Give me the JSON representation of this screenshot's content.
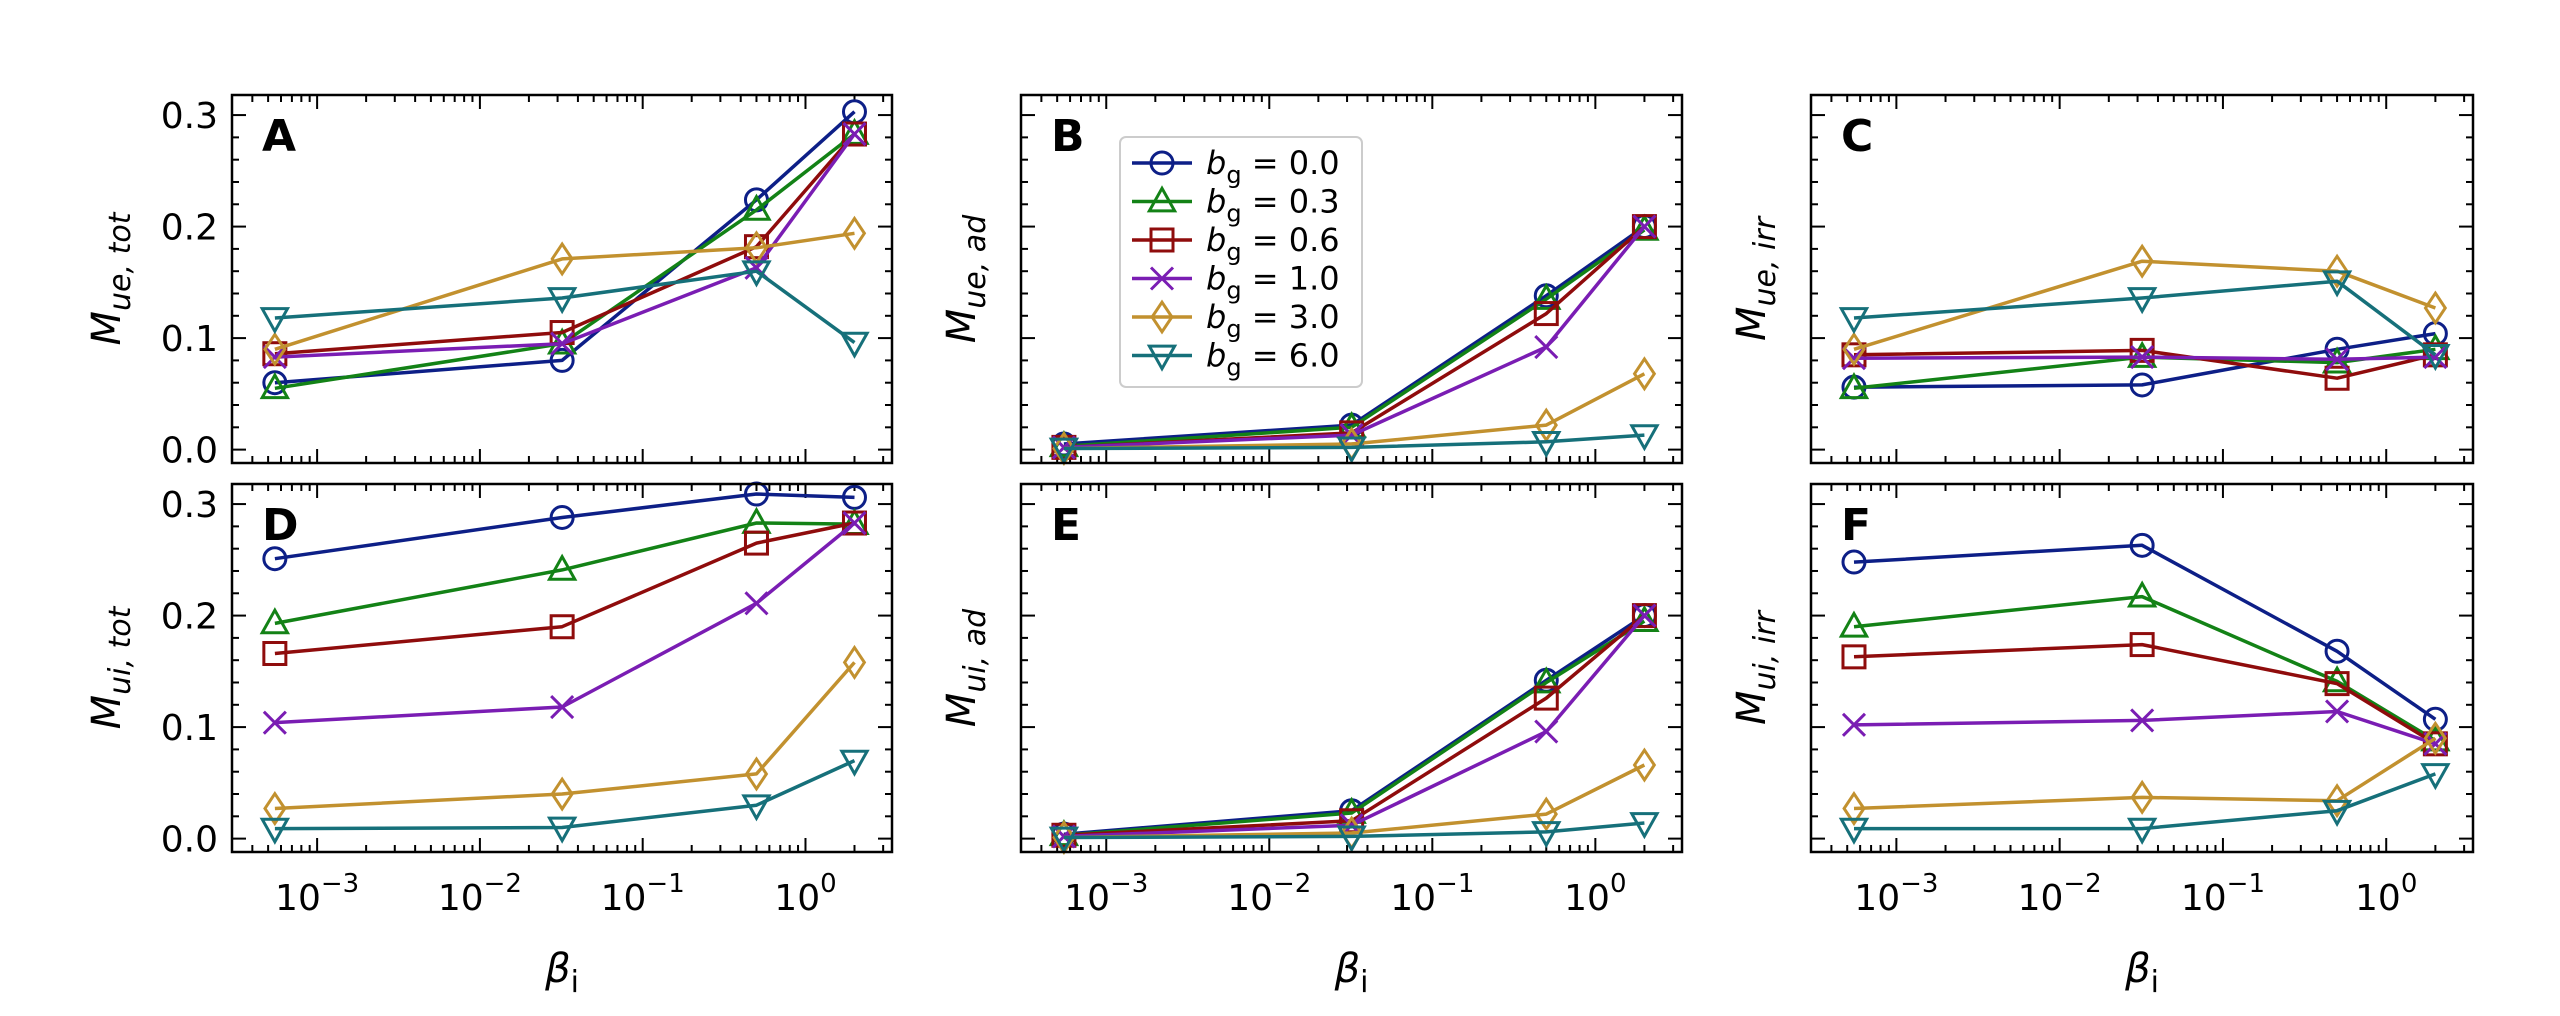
{
  "chart_data": {
    "type": "line",
    "x_scale": "log",
    "x": [
      0.00055,
      0.032,
      0.5,
      2.0
    ],
    "xticks": [
      0.001,
      0.01,
      0.1,
      1
    ],
    "xtick_base": "10",
    "xtick_exponents": [
      "−3",
      "−2",
      "−1",
      "0"
    ],
    "xlim": [
      0.0003,
      3.4
    ],
    "ylim": [
      -0.012,
      0.318
    ],
    "yticks": [
      0.0,
      0.1,
      0.2,
      0.3
    ],
    "ytick_labels": [
      "0.0",
      "0.1",
      "0.2",
      "0.3"
    ],
    "xlabel": {
      "main": "β",
      "sub": "i"
    },
    "legend": {
      "placement": "panel B, upper-left",
      "prefix": "b",
      "prefix_sub": "g",
      "entries": [
        {
          "label": " = 0.0",
          "color": "#0d1f87",
          "marker": "circle"
        },
        {
          "label": " = 0.3",
          "color": "#138216",
          "marker": "triangle-up"
        },
        {
          "label": " = 0.6",
          "color": "#8f0c0c",
          "marker": "square"
        },
        {
          "label": " = 1.0",
          "color": "#7a1db3",
          "marker": "x"
        },
        {
          "label": " = 3.0",
          "color": "#c2912f",
          "marker": "diamond"
        },
        {
          "label": " = 6.0",
          "color": "#16707a",
          "marker": "triangle-down"
        }
      ]
    },
    "panels": [
      {
        "letter": "A",
        "ylabel": {
          "main": "M",
          "sub": "ue, tot"
        },
        "show_yticklabels": true,
        "show_xticklabels": false,
        "series": [
          {
            "name": "b_g = 0.0",
            "values": [
              0.06,
              0.08,
              0.224,
              0.303
            ]
          },
          {
            "name": "b_g = 0.3",
            "values": [
              0.055,
              0.095,
              0.215,
              0.283
            ]
          },
          {
            "name": "b_g = 0.6",
            "values": [
              0.086,
              0.105,
              0.182,
              0.283
            ]
          },
          {
            "name": "b_g = 1.0",
            "values": [
              0.083,
              0.095,
              0.163,
              0.283
            ]
          },
          {
            "name": "b_g = 3.0",
            "values": [
              0.09,
              0.171,
              0.181,
              0.194
            ]
          },
          {
            "name": "b_g = 6.0",
            "values": [
              0.118,
              0.136,
              0.16,
              0.096
            ]
          }
        ]
      },
      {
        "letter": "B",
        "ylabel": {
          "main": "M",
          "sub": "ue, ad"
        },
        "show_yticklabels": false,
        "show_xticklabels": false,
        "series": [
          {
            "name": "b_g = 0.0",
            "values": [
              0.005,
              0.022,
              0.138,
              0.2
            ]
          },
          {
            "name": "b_g = 0.3",
            "values": [
              0.003,
              0.02,
              0.135,
              0.197
            ]
          },
          {
            "name": "b_g = 0.6",
            "values": [
              0.002,
              0.015,
              0.122,
              0.2
            ]
          },
          {
            "name": "b_g = 1.0",
            "values": [
              0.002,
              0.013,
              0.092,
              0.2
            ]
          },
          {
            "name": "b_g = 3.0",
            "values": [
              0.001,
              0.005,
              0.022,
              0.068
            ]
          },
          {
            "name": "b_g = 6.0",
            "values": [
              0.001,
              0.002,
              0.007,
              0.013
            ]
          }
        ]
      },
      {
        "letter": "C",
        "ylabel": {
          "main": "M",
          "sub": "ue, irr"
        },
        "show_yticklabels": false,
        "show_xticklabels": false,
        "series": [
          {
            "name": "b_g = 0.0",
            "values": [
              0.056,
              0.058,
              0.09,
              0.104
            ]
          },
          {
            "name": "b_g = 0.3",
            "values": [
              0.055,
              0.083,
              0.078,
              0.09
            ]
          },
          {
            "name": "b_g = 0.6",
            "values": [
              0.085,
              0.089,
              0.064,
              0.085
            ]
          },
          {
            "name": "b_g = 1.0",
            "values": [
              0.082,
              0.083,
              0.081,
              0.083
            ]
          },
          {
            "name": "b_g = 3.0",
            "values": [
              0.09,
              0.169,
              0.16,
              0.127
            ]
          },
          {
            "name": "b_g = 6.0",
            "values": [
              0.118,
              0.136,
              0.151,
              0.085
            ]
          }
        ]
      },
      {
        "letter": "D",
        "ylabel": {
          "main": "M",
          "sub": "ui, tot"
        },
        "show_yticklabels": true,
        "show_xticklabels": true,
        "series": [
          {
            "name": "b_g = 0.0",
            "values": [
              0.251,
              0.288,
              0.309,
              0.306
            ]
          },
          {
            "name": "b_g = 0.3",
            "values": [
              0.193,
              0.241,
              0.283,
              0.282
            ]
          },
          {
            "name": "b_g = 0.6",
            "values": [
              0.166,
              0.19,
              0.265,
              0.283
            ]
          },
          {
            "name": "b_g = 1.0",
            "values": [
              0.104,
              0.118,
              0.211,
              0.283
            ]
          },
          {
            "name": "b_g = 3.0",
            "values": [
              0.027,
              0.04,
              0.058,
              0.158
            ]
          },
          {
            "name": "b_g = 6.0",
            "values": [
              0.009,
              0.01,
              0.03,
              0.07
            ]
          }
        ]
      },
      {
        "letter": "E",
        "ylabel": {
          "main": "M",
          "sub": "ui, ad"
        },
        "show_yticklabels": false,
        "show_xticklabels": true,
        "series": [
          {
            "name": "b_g = 0.0",
            "values": [
              0.004,
              0.025,
              0.142,
              0.2
            ]
          },
          {
            "name": "b_g = 0.3",
            "values": [
              0.003,
              0.023,
              0.14,
              0.195
            ]
          },
          {
            "name": "b_g = 0.6",
            "values": [
              0.003,
              0.016,
              0.126,
              0.2
            ]
          },
          {
            "name": "b_g = 1.0",
            "values": [
              0.002,
              0.012,
              0.096,
              0.2
            ]
          },
          {
            "name": "b_g = 3.0",
            "values": [
              0.001,
              0.005,
              0.022,
              0.066
            ]
          },
          {
            "name": "b_g = 6.0",
            "values": [
              0.001,
              0.002,
              0.006,
              0.014
            ]
          }
        ]
      },
      {
        "letter": "F",
        "ylabel": {
          "main": "M",
          "sub": "ui, irr"
        },
        "show_yticklabels": false,
        "show_xticklabels": true,
        "series": [
          {
            "name": "b_g = 0.0",
            "values": [
              0.248,
              0.263,
              0.168,
              0.107
            ]
          },
          {
            "name": "b_g = 0.3",
            "values": [
              0.19,
              0.217,
              0.141,
              0.088
            ]
          },
          {
            "name": "b_g = 0.6",
            "values": [
              0.163,
              0.174,
              0.139,
              0.085
            ]
          },
          {
            "name": "b_g = 1.0",
            "values": [
              0.102,
              0.106,
              0.114,
              0.085
            ]
          },
          {
            "name": "b_g = 3.0",
            "values": [
              0.027,
              0.037,
              0.034,
              0.09
            ]
          },
          {
            "name": "b_g = 6.0",
            "values": [
              0.009,
              0.009,
              0.025,
              0.058
            ]
          }
        ]
      }
    ]
  }
}
